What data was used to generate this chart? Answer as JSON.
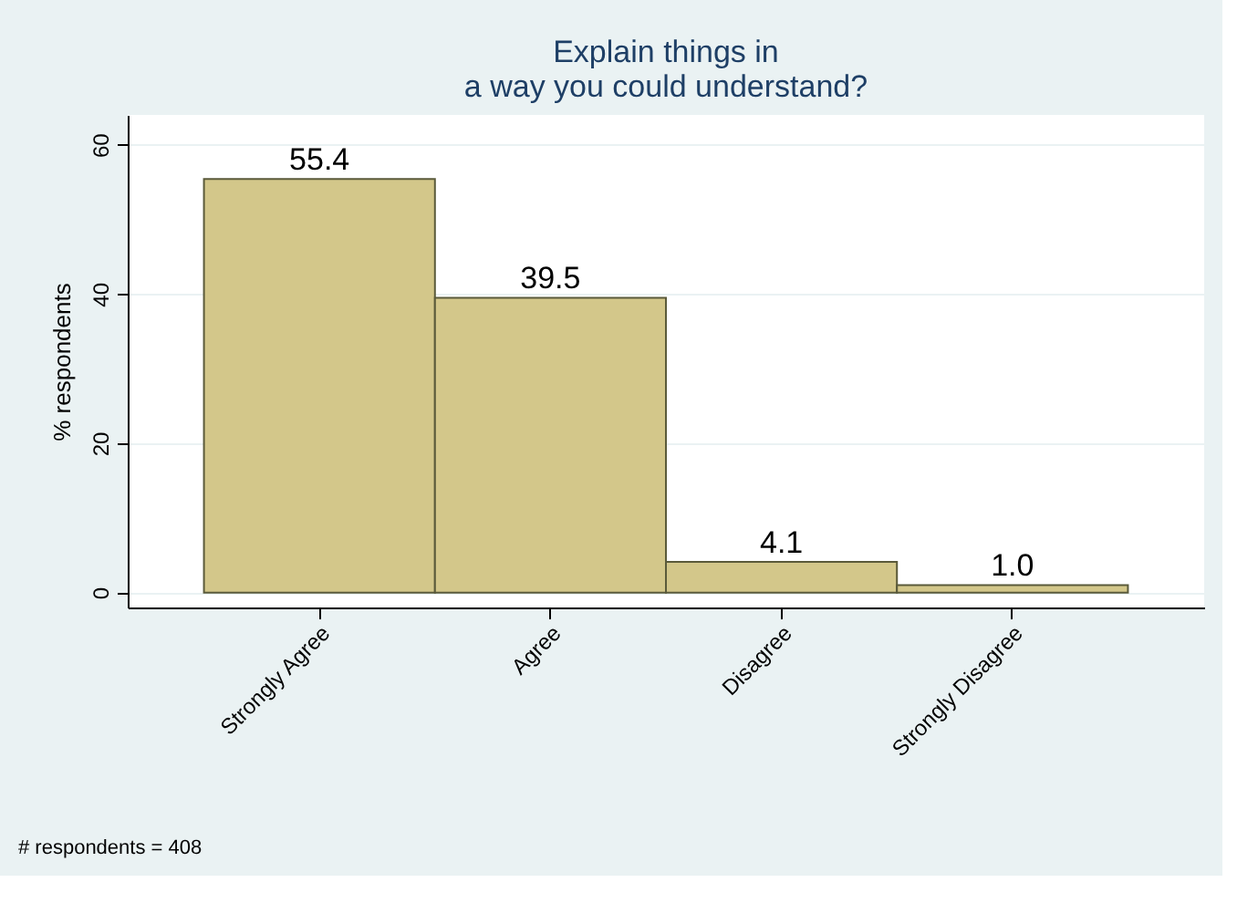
{
  "chart_data": {
    "type": "bar",
    "title": "Explain things in\na way you could understand?",
    "categories": [
      "Strongly Agree",
      "Agree",
      "Disagree",
      "Strongly Disagree"
    ],
    "values": [
      55.4,
      39.5,
      4.1,
      1.0
    ],
    "value_labels": [
      "55.4",
      "39.5",
      "4.1",
      "1.0"
    ],
    "color": "#d3c78a",
    "ylabel": "% respondents",
    "ylim": [
      -2,
      64
    ],
    "yticks": [
      0,
      20,
      40,
      60
    ],
    "grid": "y",
    "annotations": [
      "# respondents = 408"
    ]
  }
}
